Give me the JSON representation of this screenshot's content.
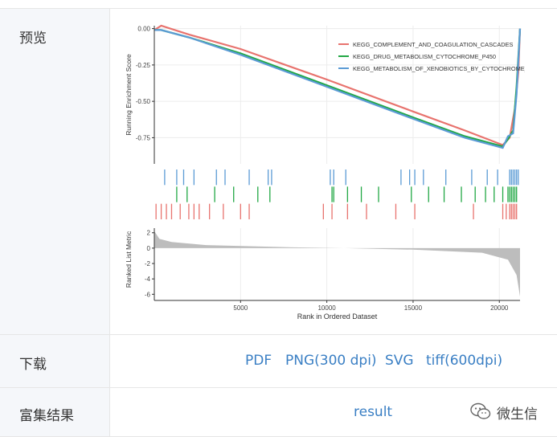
{
  "table": {
    "rows": [
      {
        "label": "预览"
      },
      {
        "label": "下载",
        "links": [
          "PDF",
          "PNG(300 dpi)",
          "SVG",
          "tiff(600dpi)"
        ]
      },
      {
        "label": "富集结果",
        "links": [
          "result"
        ]
      }
    ]
  },
  "watermark": {
    "text": "微生信",
    "icon": "wechat-icon"
  },
  "chart_data": {
    "type": "line",
    "title": "",
    "panels": [
      {
        "name": "enrichment",
        "ylabel": "Running Enrichment Score",
        "yticks": [
          "0.00",
          "-0.25",
          "-0.50",
          "-0.75"
        ],
        "ylim": [
          -0.93,
          0.02
        ],
        "series": [
          {
            "name": "KEGG_COMPLEMENT_AND_COAGULATION_CASCADES",
            "color": "#e8736e",
            "points": [
              [
                0,
                -0.01
              ],
              [
                400,
                0.02
              ],
              [
                2000,
                -0.04
              ],
              [
                5000,
                -0.14
              ],
              [
                10000,
                -0.35
              ],
              [
                15000,
                -0.57
              ],
              [
                18000,
                -0.7
              ],
              [
                20200,
                -0.8
              ],
              [
                20600,
                -0.75
              ],
              [
                20900,
                -0.55
              ],
              [
                21100,
                -0.3
              ],
              [
                21200,
                0.0
              ]
            ]
          },
          {
            "name": "KEGG_DRUG_METABOLISM_CYTOCHROME_P450",
            "color": "#22a845",
            "points": [
              [
                0,
                -0.01
              ],
              [
                400,
                -0.01
              ],
              [
                2000,
                -0.06
              ],
              [
                5000,
                -0.17
              ],
              [
                10000,
                -0.39
              ],
              [
                15000,
                -0.61
              ],
              [
                18000,
                -0.74
              ],
              [
                20200,
                -0.81
              ],
              [
                20500,
                -0.76
              ],
              [
                20800,
                -0.7
              ],
              [
                21000,
                -0.4
              ],
              [
                21200,
                0.0
              ]
            ]
          },
          {
            "name": "KEGG_METABOLISM_OF_XENOBIOTICS_BY_CYTOCHROME_P450",
            "color": "#5b9bd5",
            "points": [
              [
                0,
                -0.01
              ],
              [
                400,
                -0.01
              ],
              [
                2000,
                -0.06
              ],
              [
                5000,
                -0.18
              ],
              [
                10000,
                -0.4
              ],
              [
                15000,
                -0.62
              ],
              [
                18000,
                -0.75
              ],
              [
                20200,
                -0.82
              ],
              [
                20500,
                -0.74
              ],
              [
                20800,
                -0.72
              ],
              [
                21000,
                -0.45
              ],
              [
                21200,
                0.0
              ]
            ]
          }
        ]
      },
      {
        "name": "ranked_list",
        "ylabel": "Ranked List Metric",
        "yticks": [
          "2",
          "0",
          "-2",
          "-4",
          "-6"
        ],
        "ylim": [
          -6.8,
          2.6
        ],
        "fill_color": "#bdbdbd",
        "points": [
          [
            0,
            2.2
          ],
          [
            300,
            1.2
          ],
          [
            1000,
            0.8
          ],
          [
            3000,
            0.4
          ],
          [
            8000,
            0.1
          ],
          [
            11000,
            0.0
          ],
          [
            15000,
            -0.2
          ],
          [
            19000,
            -0.6
          ],
          [
            20500,
            -1.5
          ],
          [
            21000,
            -3.5
          ],
          [
            21200,
            -6.3
          ]
        ]
      }
    ],
    "hits": {
      "blue": [
        600,
        1300,
        1700,
        2300,
        3600,
        4100,
        5500,
        6600,
        6800,
        10200,
        10400,
        11100,
        14300,
        14800,
        15100,
        15600,
        16900,
        18400,
        19300,
        19900,
        20600,
        20700,
        20800,
        20900,
        21000,
        21100
      ],
      "green": [
        1300,
        1900,
        3500,
        4600,
        6000,
        6700,
        10300,
        10400,
        11200,
        12000,
        13000,
        14900,
        15900,
        16800,
        17800,
        18600,
        19200,
        19700,
        20200,
        20500,
        20600,
        20700,
        20800,
        20900,
        21000
      ],
      "red": [
        100,
        400,
        700,
        1000,
        1500,
        2000,
        2300,
        2600,
        3200,
        4000,
        5000,
        5500,
        9800,
        10300,
        11200,
        12300,
        14000,
        15100,
        18500,
        20200,
        20400,
        20600,
        20700,
        20800,
        20900,
        21000
      ]
    },
    "x": {
      "label": "Rank in Ordered Dataset",
      "ticks": [
        5000,
        10000,
        15000,
        20000
      ],
      "lim": [
        0,
        21200
      ]
    },
    "legend": {
      "position": "top-right"
    },
    "grid": true
  }
}
